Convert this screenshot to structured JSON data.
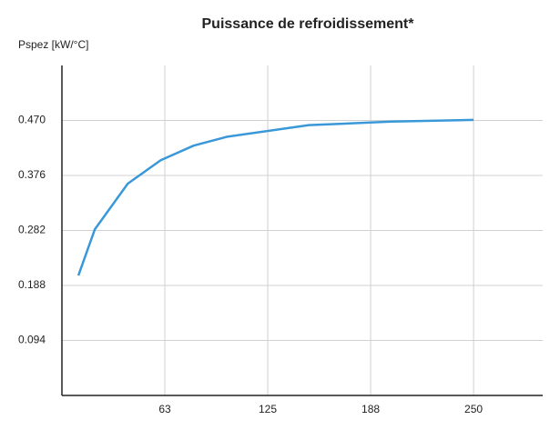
{
  "chart_data": {
    "type": "line",
    "title": "Puissance de refroidissement*",
    "y_label": "Pspez [kW/°C]",
    "x": [
      10,
      20,
      40,
      60,
      80,
      100,
      150,
      200,
      250
    ],
    "series": [
      {
        "color": "#3a98d8",
        "values": [
          0.205,
          0.284,
          0.362,
          0.402,
          0.427,
          0.442,
          0.462,
          0.468,
          0.471
        ]
      }
    ],
    "xlim": [
      0,
      292
    ],
    "ylim": [
      0,
      0.564
    ],
    "xticks": [
      {
        "value": 62.5,
        "label": "63"
      },
      125,
      {
        "value": 187.5,
        "label": "188"
      },
      250
    ],
    "yticks": [
      {
        "value": 0.094,
        "label": "0.094"
      },
      {
        "value": 0.188,
        "label": "0.188"
      },
      {
        "value": 0.282,
        "label": "0.282"
      },
      {
        "value": 0.376,
        "label": "0.376"
      },
      {
        "value": 0.47,
        "label": "0.470"
      }
    ],
    "grid": true
  }
}
